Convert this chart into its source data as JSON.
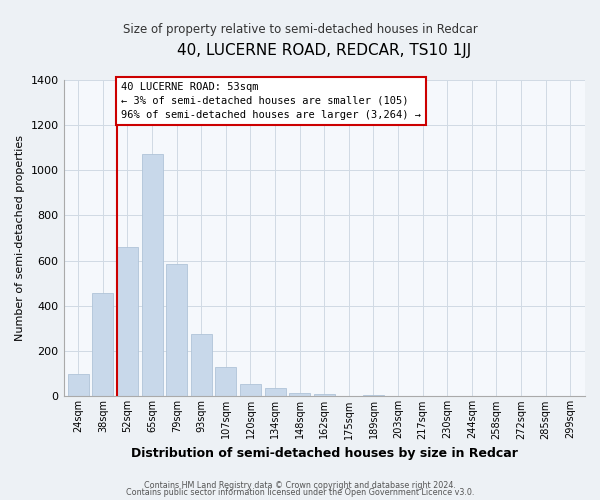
{
  "title": "40, LUCERNE ROAD, REDCAR, TS10 1JJ",
  "subtitle": "Size of property relative to semi-detached houses in Redcar",
  "xlabel": "Distribution of semi-detached houses by size in Redcar",
  "ylabel": "Number of semi-detached properties",
  "bar_labels": [
    "24sqm",
    "38sqm",
    "52sqm",
    "65sqm",
    "79sqm",
    "93sqm",
    "107sqm",
    "120sqm",
    "134sqm",
    "148sqm",
    "162sqm",
    "175sqm",
    "189sqm",
    "203sqm",
    "217sqm",
    "230sqm",
    "244sqm",
    "258sqm",
    "272sqm",
    "285sqm",
    "299sqm"
  ],
  "bar_values": [
    100,
    455,
    660,
    1070,
    585,
    275,
    130,
    55,
    38,
    15,
    12,
    0,
    5,
    0,
    0,
    3,
    0,
    0,
    0,
    0,
    0
  ],
  "bar_color": "#c8d8ea",
  "bar_edge_color": "#b0c4d8",
  "red_line_index": 2,
  "annotation_line1": "40 LUCERNE ROAD: 53sqm",
  "annotation_line2": "← 3% of semi-detached houses are smaller (105)",
  "annotation_line3": "96% of semi-detached houses are larger (3,264) →",
  "annotation_box_color": "#ffffff",
  "annotation_box_edge": "#cc0000",
  "ylim": [
    0,
    1400
  ],
  "yticks": [
    0,
    200,
    400,
    600,
    800,
    1000,
    1200,
    1400
  ],
  "footer_line1": "Contains HM Land Registry data © Crown copyright and database right 2024.",
  "footer_line2": "Contains public sector information licensed under the Open Government Licence v3.0.",
  "bg_color": "#edf1f5",
  "plot_bg_color": "#f5f8fc"
}
